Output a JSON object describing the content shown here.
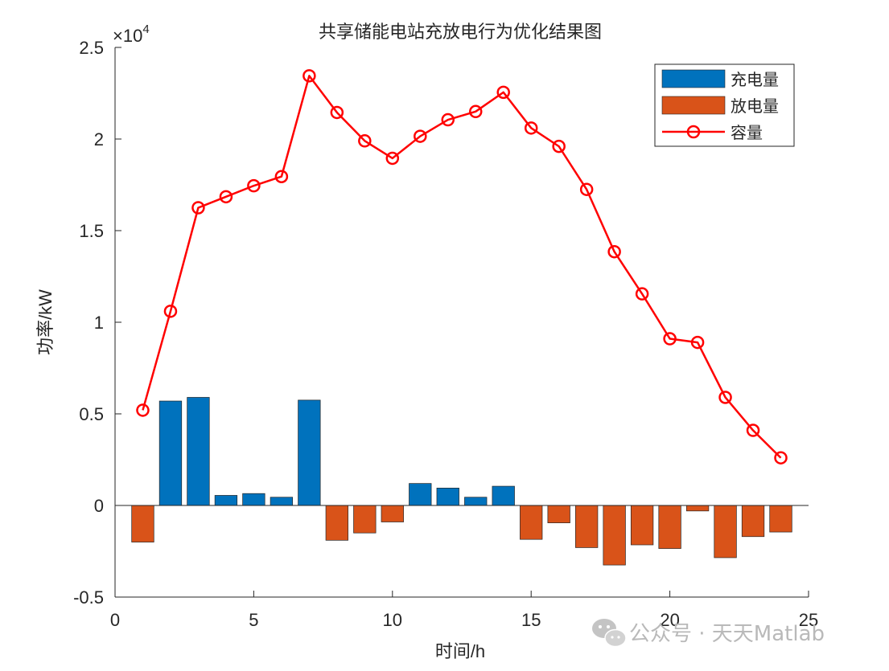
{
  "chart_data": {
    "type": "bar",
    "title": "共享储能电站充放电行为优化结果图",
    "xlabel": "时间/h",
    "ylabel": "功率/kW",
    "xlim": [
      0,
      25
    ],
    "ylim": [
      -0.5,
      2.5
    ],
    "y_multiplier_label": "×10",
    "y_multiplier_exp": "4",
    "xticks": [
      0,
      5,
      10,
      15,
      20,
      25
    ],
    "xtick_labels": [
      "0",
      "5",
      "10",
      "15",
      "20",
      "25"
    ],
    "yticks": [
      -0.5,
      0,
      0.5,
      1,
      1.5,
      2,
      2.5
    ],
    "ytick_labels": [
      "-0.5",
      "0",
      "0.5",
      "1",
      "1.5",
      "2",
      "2.5"
    ],
    "x": [
      1,
      2,
      3,
      4,
      5,
      6,
      7,
      8,
      9,
      10,
      11,
      12,
      13,
      14,
      15,
      16,
      17,
      18,
      19,
      20,
      21,
      22,
      23,
      24
    ],
    "series": [
      {
        "name": "充电量",
        "kind": "bar",
        "color": "#0072BD",
        "values": [
          0,
          0.57,
          0.59,
          0.055,
          0.065,
          0.045,
          0.575,
          0,
          0,
          0,
          0.12,
          0.095,
          0.045,
          0.105,
          0,
          0,
          0,
          0,
          0,
          0,
          0,
          0,
          0,
          0
        ]
      },
      {
        "name": "放电量",
        "kind": "bar",
        "color": "#D95319",
        "values": [
          -0.2,
          0,
          0,
          0,
          0,
          0,
          0,
          -0.19,
          -0.15,
          -0.09,
          0,
          0,
          0,
          0,
          -0.185,
          -0.095,
          -0.23,
          -0.325,
          -0.215,
          -0.235,
          -0.03,
          -0.285,
          -0.17,
          -0.145
        ]
      },
      {
        "name": "容量",
        "kind": "line",
        "color": "#FF0000",
        "marker": "circle",
        "values": [
          0.52,
          1.06,
          1.625,
          1.685,
          1.745,
          1.795,
          2.345,
          2.145,
          1.99,
          1.895,
          2.015,
          2.105,
          2.15,
          2.255,
          2.06,
          1.96,
          1.725,
          1.385,
          1.155,
          0.91,
          0.89,
          0.59,
          0.41,
          0.26
        ]
      }
    ],
    "legend_position": "top-right"
  },
  "watermark": {
    "text": "公众号 · 天天Matlab"
  }
}
